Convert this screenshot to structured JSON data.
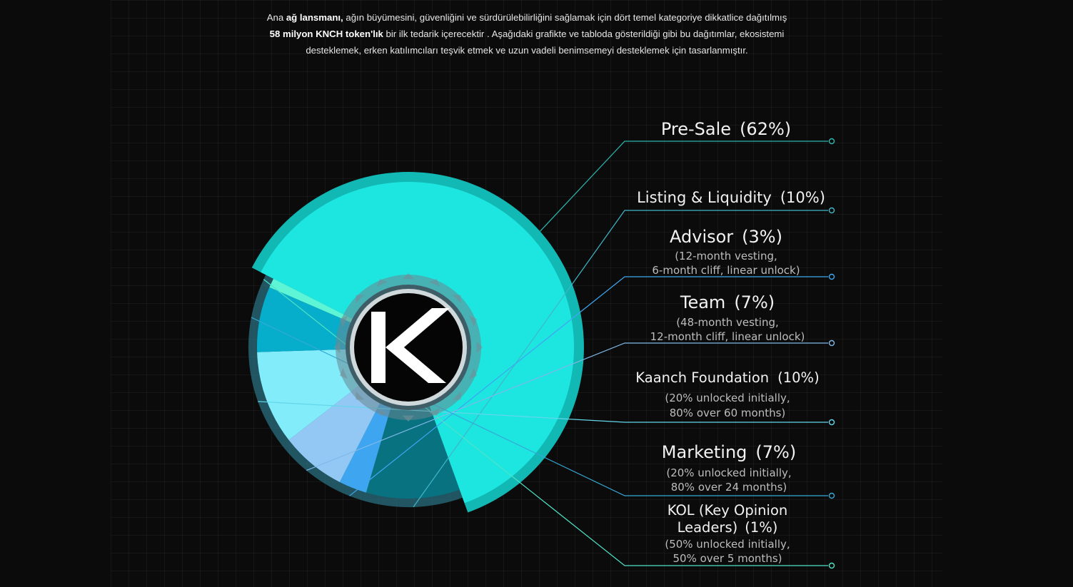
{
  "intro": {
    "p1": "Ana ",
    "b1": "ağ lansmanı,",
    "p2": " ağın büyümesini, güvenliğini ve sürdürülebilirliğini sağlamak için dört temel kategoriye dikkatlice dağıtılmış ",
    "b2": "58 milyon KNCH token'lık",
    "p3": " bir ilk tedarik içerecektir . Aşağıdaki grafikte ve tabloda gösterildiği gibi bu dağıtımlar, ekosistemi desteklemek, erken katılımcıları teşvik etmek ve uzun vadeli benimsemeyi desteklemek için tasarlanmıştır."
  },
  "logo": {
    "icon": "knch-k-logo"
  },
  "chart_data": {
    "type": "pie",
    "categories": [
      "Pre-Sale",
      "Listing & Liquidity",
      "Advisor",
      "Team",
      "Kaanch Foundation",
      "Marketing",
      "KOL (Key Opinion Leaders)"
    ],
    "values": [
      62,
      10,
      3,
      7,
      10,
      7,
      1
    ],
    "colors": [
      "#1de5e0",
      "#087281",
      "#3ea6f0",
      "#93c8f4",
      "#82ecfa",
      "#06aecb",
      "#5ef5d6"
    ],
    "labels": [
      {
        "title": "Pre-Sale",
        "pct": "(62%)",
        "notes": []
      },
      {
        "title": "Listing & Liquidity",
        "pct": "(10%)",
        "notes": []
      },
      {
        "title": "Advisor",
        "pct": "(3%)",
        "notes": [
          "(12-month vesting,",
          "6-month cliff, linear unlock)"
        ]
      },
      {
        "title": "Team",
        "pct": "(7%)",
        "notes": [
          "(48-month vesting,",
          "12-month cliff, linear unlock)"
        ]
      },
      {
        "title": "Kaanch Foundation",
        "pct": "(10%)",
        "notes": [
          "(20% unlocked initially,",
          "80% over 60 months)"
        ]
      },
      {
        "title": "Marketing",
        "pct": "(7%)",
        "notes": [
          "(20% unlocked initially,",
          "80% over 24 months)"
        ]
      },
      {
        "title": "KOL (Key Opinion",
        "title2": "Leaders)",
        "pct": "(1%)",
        "notes": [
          "(50% unlocked initially,",
          "50% over 5 months)"
        ]
      }
    ]
  }
}
